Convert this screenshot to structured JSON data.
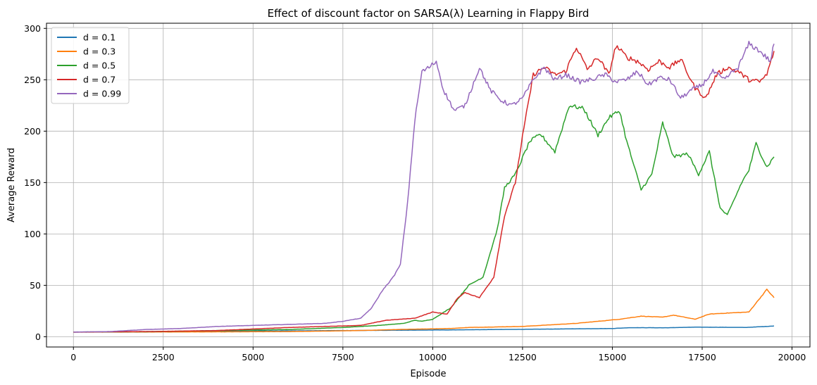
{
  "chart_data": {
    "type": "line",
    "title": "Effect of discount factor on SARSA(λ) Learning in Flappy Bird",
    "xlabel": "Episode",
    "ylabel": "Average Reward",
    "xlim": [
      -750,
      20500
    ],
    "ylim": [
      -10,
      305
    ],
    "xticks": [
      0,
      2500,
      5000,
      7500,
      10000,
      12500,
      15000,
      17500,
      20000
    ],
    "yticks": [
      0,
      50,
      100,
      150,
      200,
      250,
      300
    ],
    "grid": true,
    "legend_position": "top-left",
    "series": [
      {
        "name": "d = 0.1",
        "color": "#1f77b4",
        "points": [
          [
            0,
            4.5
          ],
          [
            2500,
            5
          ],
          [
            5000,
            5.5
          ],
          [
            7500,
            6
          ],
          [
            10000,
            6.5
          ],
          [
            12500,
            7.2
          ],
          [
            15000,
            8
          ],
          [
            15500,
            8.8
          ],
          [
            16500,
            8.7
          ],
          [
            17300,
            9.3
          ],
          [
            18000,
            9.2
          ],
          [
            18700,
            9
          ],
          [
            19300,
            10
          ],
          [
            19500,
            10.5
          ]
        ]
      },
      {
        "name": "d = 0.3",
        "color": "#ff7f0e",
        "points": [
          [
            0,
            4.5
          ],
          [
            2000,
            4.6
          ],
          [
            4000,
            4.7
          ],
          [
            6000,
            5
          ],
          [
            8000,
            6
          ],
          [
            9000,
            7
          ],
          [
            10500,
            8
          ],
          [
            11000,
            9
          ],
          [
            12500,
            10
          ],
          [
            13000,
            11
          ],
          [
            14000,
            13
          ],
          [
            14600,
            15
          ],
          [
            15200,
            17
          ],
          [
            15800,
            20
          ],
          [
            16400,
            19
          ],
          [
            16700,
            21
          ],
          [
            17000,
            19
          ],
          [
            17300,
            17
          ],
          [
            17700,
            22
          ],
          [
            18200,
            23
          ],
          [
            18800,
            24
          ],
          [
            19300,
            46
          ],
          [
            19500,
            38
          ]
        ]
      },
      {
        "name": "d = 0.5",
        "color": "#2ca02c",
        "points": [
          [
            0,
            4.5
          ],
          [
            2000,
            4.8
          ],
          [
            4000,
            6
          ],
          [
            6000,
            7
          ],
          [
            7500,
            9
          ],
          [
            8500,
            11
          ],
          [
            9200,
            13
          ],
          [
            9500,
            16
          ],
          [
            9700,
            15
          ],
          [
            10000,
            17
          ],
          [
            10500,
            28
          ],
          [
            11000,
            50
          ],
          [
            11400,
            58
          ],
          [
            11800,
            105
          ],
          [
            12000,
            145
          ],
          [
            12300,
            158
          ],
          [
            12700,
            190
          ],
          [
            13000,
            197
          ],
          [
            13400,
            180
          ],
          [
            13800,
            225
          ],
          [
            14200,
            222
          ],
          [
            14600,
            196
          ],
          [
            14900,
            213
          ],
          [
            15200,
            220
          ],
          [
            15400,
            190
          ],
          [
            15800,
            143
          ],
          [
            16100,
            158
          ],
          [
            16400,
            208
          ],
          [
            16700,
            175
          ],
          [
            17100,
            178
          ],
          [
            17400,
            158
          ],
          [
            17700,
            180
          ],
          [
            18000,
            125
          ],
          [
            18200,
            118
          ],
          [
            18600,
            150
          ],
          [
            18800,
            162
          ],
          [
            19000,
            188
          ],
          [
            19300,
            165
          ],
          [
            19500,
            175
          ]
        ]
      },
      {
        "name": "d = 0.7",
        "color": "#d62728",
        "points": [
          [
            0,
            4.5
          ],
          [
            2000,
            5
          ],
          [
            4000,
            6
          ],
          [
            6000,
            9
          ],
          [
            8000,
            11
          ],
          [
            8700,
            16
          ],
          [
            9500,
            18
          ],
          [
            10000,
            24
          ],
          [
            10400,
            22
          ],
          [
            10700,
            38
          ],
          [
            10900,
            43
          ],
          [
            11300,
            38
          ],
          [
            11700,
            58
          ],
          [
            12000,
            118
          ],
          [
            12300,
            150
          ],
          [
            12500,
            195
          ],
          [
            12800,
            255
          ],
          [
            13100,
            262
          ],
          [
            13400,
            255
          ],
          [
            13700,
            258
          ],
          [
            14000,
            282
          ],
          [
            14300,
            260
          ],
          [
            14600,
            272
          ],
          [
            14900,
            255
          ],
          [
            15100,
            283
          ],
          [
            15400,
            272
          ],
          [
            15700,
            268
          ],
          [
            16000,
            260
          ],
          [
            16300,
            268
          ],
          [
            16600,
            262
          ],
          [
            16900,
            270
          ],
          [
            17300,
            242
          ],
          [
            17600,
            232
          ],
          [
            17900,
            255
          ],
          [
            18200,
            262
          ],
          [
            18500,
            258
          ],
          [
            18800,
            250
          ],
          [
            19100,
            248
          ],
          [
            19300,
            255
          ],
          [
            19500,
            278
          ]
        ]
      },
      {
        "name": "d = 0.99",
        "color": "#9467bd",
        "points": [
          [
            0,
            4.5
          ],
          [
            1000,
            5
          ],
          [
            2000,
            7
          ],
          [
            3000,
            8
          ],
          [
            4000,
            10
          ],
          [
            5000,
            11
          ],
          [
            6000,
            12
          ],
          [
            7000,
            13
          ],
          [
            7500,
            15
          ],
          [
            8000,
            18
          ],
          [
            8300,
            28
          ],
          [
            8600,
            45
          ],
          [
            8900,
            58
          ],
          [
            9100,
            70
          ],
          [
            9300,
            130
          ],
          [
            9500,
            210
          ],
          [
            9700,
            258
          ],
          [
            9900,
            262
          ],
          [
            10100,
            268
          ],
          [
            10300,
            240
          ],
          [
            10600,
            220
          ],
          [
            10900,
            225
          ],
          [
            11300,
            262
          ],
          [
            11600,
            240
          ],
          [
            11900,
            230
          ],
          [
            12200,
            225
          ],
          [
            12500,
            232
          ],
          [
            12800,
            250
          ],
          [
            13100,
            262
          ],
          [
            13400,
            250
          ],
          [
            13700,
            255
          ],
          [
            14100,
            248
          ],
          [
            14400,
            250
          ],
          [
            14800,
            255
          ],
          [
            15100,
            248
          ],
          [
            15400,
            250
          ],
          [
            15700,
            258
          ],
          [
            16000,
            245
          ],
          [
            16300,
            252
          ],
          [
            16600,
            250
          ],
          [
            16900,
            232
          ],
          [
            17200,
            240
          ],
          [
            17500,
            245
          ],
          [
            17800,
            258
          ],
          [
            18100,
            250
          ],
          [
            18500,
            262
          ],
          [
            18800,
            285
          ],
          [
            19100,
            278
          ],
          [
            19400,
            268
          ],
          [
            19500,
            285
          ]
        ]
      }
    ]
  }
}
